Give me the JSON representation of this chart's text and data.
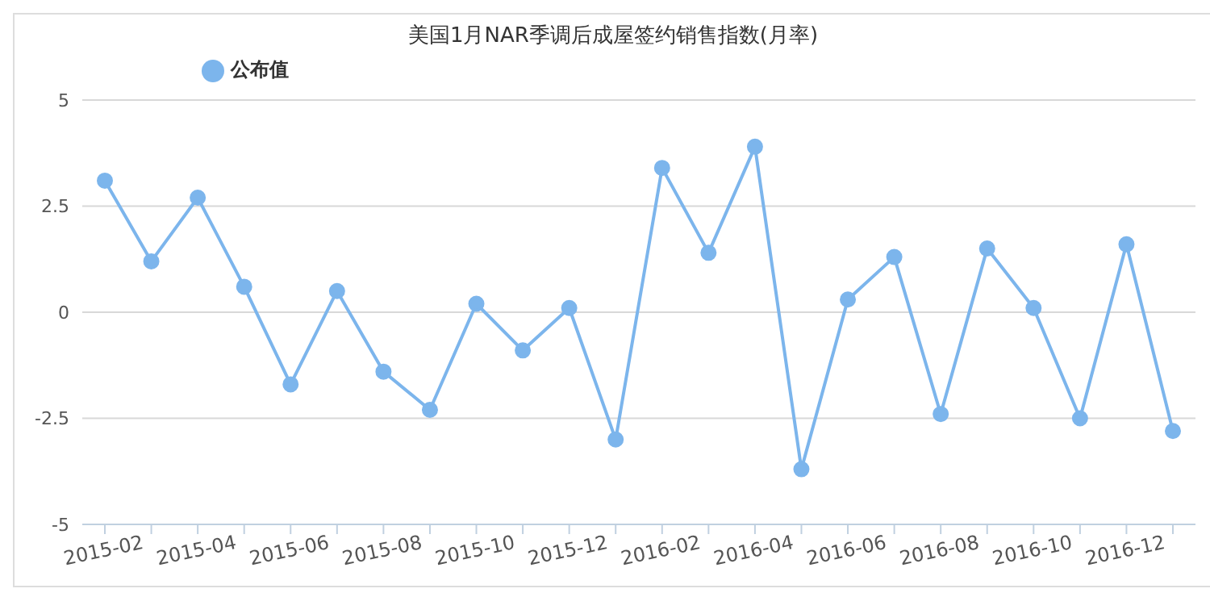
{
  "chart_data": {
    "type": "line",
    "title": "美国1月NAR季调后成屋签约销售指数(月率)",
    "categories": [
      "2015-02",
      null,
      "2015-04",
      null,
      "2015-06",
      null,
      "2015-08",
      null,
      "2015-10",
      null,
      "2015-12",
      null,
      "2016-02",
      null,
      "2016-04",
      null,
      "2016-06",
      null,
      "2016-08",
      null,
      "2016-10",
      null,
      "2016-12",
      null
    ],
    "series": [
      {
        "name": "公布值",
        "color": "#7cb5ec",
        "values": [
          3.1,
          1.2,
          2.7,
          0.6,
          -1.7,
          0.5,
          -1.4,
          -2.3,
          0.2,
          -0.9,
          0.1,
          -3.0,
          3.4,
          1.4,
          3.9,
          -3.7,
          0.3,
          1.3,
          -2.4,
          1.5,
          0.1,
          -2.5,
          1.6,
          -2.8
        ]
      }
    ],
    "ylim": [
      -5,
      5
    ],
    "yticks": [
      -5,
      -2.5,
      0,
      2.5,
      5
    ],
    "grid": "y",
    "legend": "top left",
    "marker": "circle",
    "line_style": "solid"
  }
}
